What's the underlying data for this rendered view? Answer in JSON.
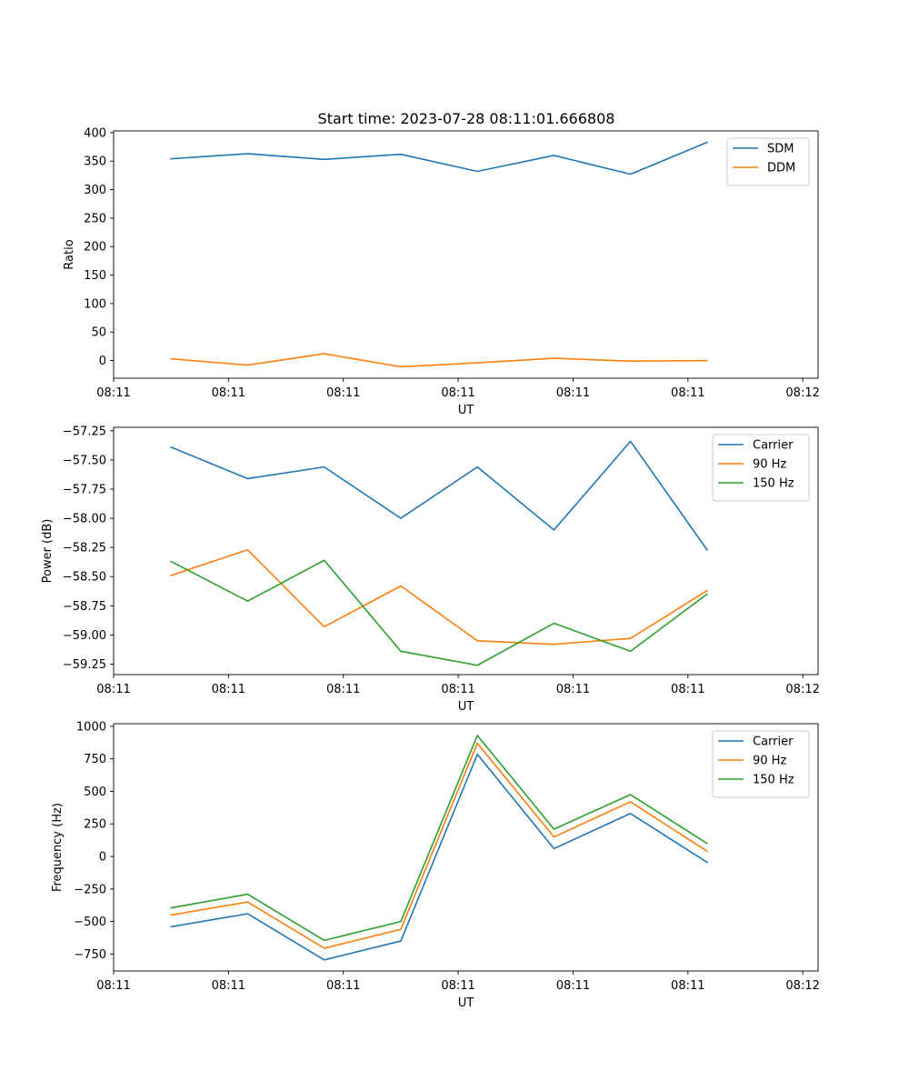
{
  "figure_title": "Start time: 2023-07-28 08:11:01.666808",
  "chart_data": [
    {
      "type": "line",
      "title": "Start time: 2023-07-28 08:11:01.666808",
      "xlabel": "UT",
      "ylabel": "Ratio",
      "xlim": [
        0,
        9.2
      ],
      "ylim": [
        -31,
        403
      ],
      "x": [
        0.75,
        1.75,
        2.75,
        3.75,
        4.75,
        5.75,
        6.75,
        7.75
      ],
      "xticks": [
        {
          "value": 0,
          "label": "08:11"
        },
        {
          "value": 1.5,
          "label": "08:11"
        },
        {
          "value": 3,
          "label": "08:11"
        },
        {
          "value": 4.5,
          "label": "08:11"
        },
        {
          "value": 6,
          "label": "08:11"
        },
        {
          "value": 7.5,
          "label": "08:11"
        },
        {
          "value": 9,
          "label": "08:12"
        }
      ],
      "yticks": [
        {
          "value": 400,
          "label": "400"
        },
        {
          "value": 350,
          "label": "350"
        },
        {
          "value": 300,
          "label": "300"
        },
        {
          "value": 250,
          "label": "250"
        },
        {
          "value": 200,
          "label": "200"
        },
        {
          "value": 150,
          "label": "150"
        },
        {
          "value": 100,
          "label": "100"
        },
        {
          "value": 50,
          "label": "50"
        },
        {
          "value": 0,
          "label": "0"
        }
      ],
      "legend_position": "top-right",
      "series": [
        {
          "name": "SDM",
          "color": "#1f77b4",
          "values": [
            354,
            363,
            353,
            362,
            332,
            360,
            327,
            383
          ]
        },
        {
          "name": "DDM",
          "color": "#ff7f0e",
          "values": [
            3,
            -8,
            12,
            -11,
            -4,
            4,
            -1,
            0
          ]
        }
      ]
    },
    {
      "type": "line",
      "title": "",
      "xlabel": "UT",
      "ylabel": "Power (dB)",
      "xlim": [
        0,
        9.2
      ],
      "ylim": [
        -59.34,
        -57.22
      ],
      "x": [
        0.75,
        1.75,
        2.75,
        3.75,
        4.75,
        5.75,
        6.75,
        7.75
      ],
      "xticks": [
        {
          "value": 0,
          "label": "08:11"
        },
        {
          "value": 1.5,
          "label": "08:11"
        },
        {
          "value": 3,
          "label": "08:11"
        },
        {
          "value": 4.5,
          "label": "08:11"
        },
        {
          "value": 6,
          "label": "08:11"
        },
        {
          "value": 7.5,
          "label": "08:11"
        },
        {
          "value": 9,
          "label": "08:12"
        }
      ],
      "yticks": [
        {
          "value": -57.25,
          "label": "−57.25"
        },
        {
          "value": -57.5,
          "label": "−57.50"
        },
        {
          "value": -57.75,
          "label": "−57.75"
        },
        {
          "value": -58.0,
          "label": "−58.00"
        },
        {
          "value": -58.25,
          "label": "−58.25"
        },
        {
          "value": -58.5,
          "label": "−58.50"
        },
        {
          "value": -58.75,
          "label": "−58.75"
        },
        {
          "value": -59.0,
          "label": "−59.00"
        },
        {
          "value": -59.25,
          "label": "−59.25"
        }
      ],
      "legend_position": "top-right",
      "series": [
        {
          "name": "Carrier",
          "color": "#1f77b4",
          "values": [
            -57.39,
            -57.66,
            -57.56,
            -58.0,
            -57.56,
            -58.1,
            -57.34,
            -58.27
          ]
        },
        {
          "name": "90 Hz",
          "color": "#ff7f0e",
          "values": [
            -58.49,
            -58.27,
            -58.93,
            -58.58,
            -59.05,
            -59.08,
            -59.03,
            -58.62
          ]
        },
        {
          "name": "150 Hz",
          "color": "#2ca02c",
          "values": [
            -58.37,
            -58.71,
            -58.36,
            -59.14,
            -59.26,
            -58.9,
            -59.14,
            -58.65
          ]
        }
      ]
    },
    {
      "type": "line",
      "title": "",
      "xlabel": "UT",
      "ylabel": "Frequency (Hz)",
      "xlim": [
        0,
        9.2
      ],
      "ylim": [
        -880,
        1020
      ],
      "x": [
        0.75,
        1.75,
        2.75,
        3.75,
        4.75,
        5.75,
        6.75,
        7.75
      ],
      "xticks": [
        {
          "value": 0,
          "label": "08:11"
        },
        {
          "value": 1.5,
          "label": "08:11"
        },
        {
          "value": 3,
          "label": "08:11"
        },
        {
          "value": 4.5,
          "label": "08:11"
        },
        {
          "value": 6,
          "label": "08:11"
        },
        {
          "value": 7.5,
          "label": "08:11"
        },
        {
          "value": 9,
          "label": "08:12"
        }
      ],
      "yticks": [
        {
          "value": 1000,
          "label": "1000"
        },
        {
          "value": 750,
          "label": "750"
        },
        {
          "value": 500,
          "label": "500"
        },
        {
          "value": 250,
          "label": "250"
        },
        {
          "value": 0,
          "label": "0"
        },
        {
          "value": -250,
          "label": "−250"
        },
        {
          "value": -500,
          "label": "−500"
        },
        {
          "value": -750,
          "label": "−750"
        }
      ],
      "legend_position": "top-right",
      "series": [
        {
          "name": "Carrier",
          "color": "#1f77b4",
          "values": [
            -540,
            -440,
            -795,
            -650,
            785,
            60,
            330,
            -45
          ]
        },
        {
          "name": "90 Hz",
          "color": "#ff7f0e",
          "values": [
            -450,
            -350,
            -705,
            -560,
            870,
            150,
            420,
            40
          ]
        },
        {
          "name": "150 Hz",
          "color": "#2ca02c",
          "values": [
            -395,
            -290,
            -645,
            -500,
            930,
            210,
            475,
            100
          ]
        }
      ]
    }
  ]
}
